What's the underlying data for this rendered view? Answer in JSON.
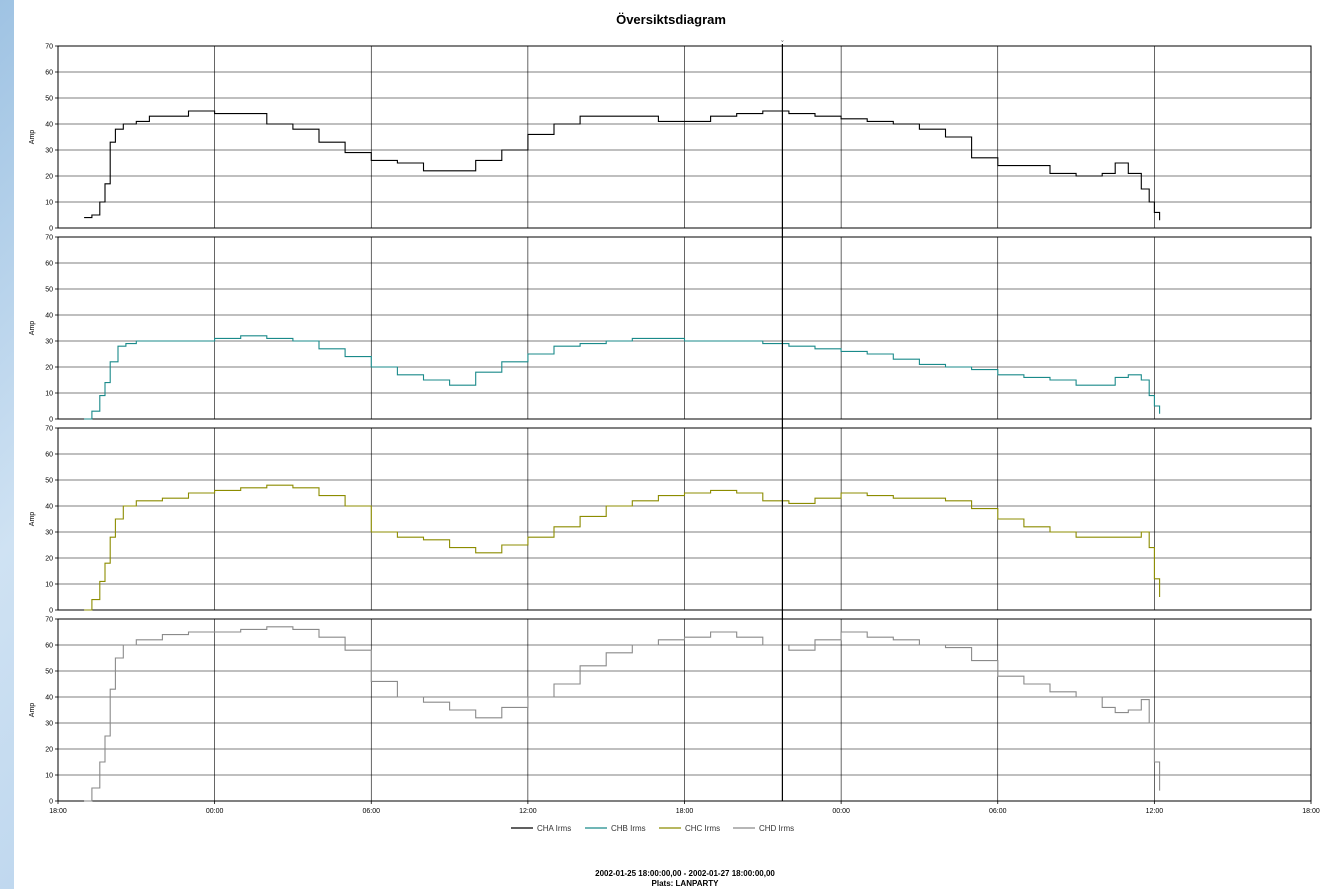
{
  "chart_data": {
    "type": "line",
    "title": "Översiktsdiagram",
    "xlabel": "",
    "ylabel": "Amp",
    "ylim": [
      0,
      70
    ],
    "yticks": [
      0,
      10,
      20,
      30,
      40,
      50,
      60,
      70
    ],
    "xlim": [
      0,
      48
    ],
    "xtick_labels": [
      "18:00",
      "00:00",
      "06:00",
      "12:00",
      "18:00",
      "00:00",
      "06:00",
      "12:00",
      "18:00"
    ],
    "xtick_values": [
      0,
      6,
      12,
      18,
      24,
      30,
      36,
      42,
      48
    ],
    "grid": true,
    "legend_position": "bottom",
    "cursor_x": 27.75,
    "footer": {
      "line1": "2002-01-25 18:00:00,00 - 2002-01-27 18:00:00,00",
      "line2": "Plats: LANPARTY"
    },
    "series": [
      {
        "name": "CHA Irms",
        "color": "#000000",
        "x": [
          1.0,
          1.3,
          1.6,
          1.8,
          2.0,
          2.2,
          2.5,
          3.0,
          3.5,
          4.0,
          5.0,
          6.0,
          7.0,
          7.5,
          8.0,
          9.0,
          10.0,
          11.0,
          12.0,
          13.0,
          14.0,
          15.0,
          16.0,
          17.0,
          18.0,
          19.0,
          20.0,
          21.0,
          22.0,
          23.0,
          24.0,
          25.0,
          26.0,
          27.0,
          28.0,
          29.0,
          30.0,
          31.0,
          32.0,
          33.0,
          34.0,
          35.0,
          36.0,
          37.0,
          38.0,
          39.0,
          40.0,
          40.5,
          41.0,
          41.5,
          41.8,
          42.0,
          42.2
        ],
        "y": [
          4,
          5,
          10,
          17,
          33,
          38,
          40,
          41,
          43,
          43,
          45,
          44,
          44,
          44,
          40,
          38,
          33,
          29,
          26,
          25,
          22,
          22,
          26,
          30,
          36,
          40,
          43,
          43,
          43,
          41,
          41,
          43,
          44,
          45,
          44,
          43,
          42,
          41,
          40,
          38,
          35,
          27,
          24,
          24,
          21,
          20,
          21,
          25,
          21,
          15,
          10,
          6,
          3
        ]
      },
      {
        "name": "CHB Irms",
        "color": "#1a8a8a",
        "x": [
          1.0,
          1.3,
          1.6,
          1.8,
          2.0,
          2.3,
          2.6,
          3.0,
          4.0,
          5.0,
          6.0,
          7.0,
          8.0,
          9.0,
          10.0,
          11.0,
          12.0,
          13.0,
          14.0,
          15.0,
          16.0,
          17.0,
          18.0,
          19.0,
          20.0,
          21.0,
          22.0,
          23.0,
          24.0,
          25.0,
          26.0,
          27.0,
          28.0,
          29.0,
          30.0,
          31.0,
          32.0,
          33.0,
          34.0,
          35.0,
          36.0,
          37.0,
          38.0,
          39.0,
          40.0,
          40.5,
          41.0,
          41.5,
          41.8,
          42.0,
          42.2
        ],
        "y": [
          0,
          3,
          9,
          14,
          22,
          28,
          29,
          30,
          30,
          30,
          31,
          32,
          31,
          30,
          27,
          24,
          20,
          17,
          15,
          13,
          18,
          22,
          25,
          28,
          29,
          30,
          31,
          31,
          30,
          30,
          30,
          29,
          28,
          27,
          26,
          25,
          23,
          21,
          20,
          19,
          17,
          16,
          15,
          13,
          13,
          16,
          17,
          15,
          9,
          5,
          2
        ]
      },
      {
        "name": "CHC Irms",
        "color": "#8c8c00",
        "x": [
          1.0,
          1.3,
          1.6,
          1.8,
          2.0,
          2.2,
          2.5,
          3.0,
          4.0,
          5.0,
          6.0,
          7.0,
          8.0,
          9.0,
          10.0,
          11.0,
          12.0,
          13.0,
          14.0,
          15.0,
          16.0,
          17.0,
          18.0,
          19.0,
          20.0,
          21.0,
          22.0,
          23.0,
          24.0,
          25.0,
          26.0,
          27.0,
          28.0,
          29.0,
          30.0,
          31.0,
          32.0,
          33.0,
          34.0,
          35.0,
          36.0,
          37.0,
          38.0,
          39.0,
          40.0,
          40.5,
          41.0,
          41.5,
          41.8,
          42.0,
          42.2
        ],
        "y": [
          0,
          4,
          11,
          18,
          28,
          35,
          40,
          42,
          43,
          45,
          46,
          47,
          48,
          47,
          44,
          40,
          30,
          28,
          27,
          24,
          22,
          25,
          28,
          32,
          36,
          40,
          42,
          44,
          45,
          46,
          45,
          42,
          41,
          43,
          45,
          44,
          43,
          43,
          42,
          39,
          35,
          32,
          30,
          28,
          28,
          28,
          28,
          30,
          24,
          12,
          5
        ]
      },
      {
        "name": "CHD Irms",
        "color": "#8a8a8a",
        "x": [
          1.0,
          1.3,
          1.6,
          1.8,
          2.0,
          2.2,
          2.5,
          3.0,
          4.0,
          5.0,
          6.0,
          7.0,
          8.0,
          9.0,
          10.0,
          11.0,
          12.0,
          13.0,
          14.0,
          15.0,
          16.0,
          17.0,
          18.0,
          19.0,
          20.0,
          21.0,
          22.0,
          23.0,
          24.0,
          25.0,
          26.0,
          27.0,
          28.0,
          29.0,
          30.0,
          31.0,
          32.0,
          33.0,
          34.0,
          35.0,
          36.0,
          37.0,
          38.0,
          39.0,
          40.0,
          40.5,
          41.0,
          41.5,
          41.8,
          42.0,
          42.2
        ],
        "y": [
          0,
          5,
          15,
          25,
          43,
          55,
          60,
          62,
          64,
          65,
          65,
          66,
          67,
          66,
          63,
          58,
          46,
          40,
          38,
          35,
          32,
          36,
          40,
          45,
          52,
          57,
          60,
          62,
          63,
          65,
          63,
          60,
          58,
          62,
          65,
          63,
          62,
          60,
          59,
          54,
          48,
          45,
          42,
          40,
          36,
          34,
          35,
          39,
          30,
          15,
          4
        ]
      }
    ]
  }
}
